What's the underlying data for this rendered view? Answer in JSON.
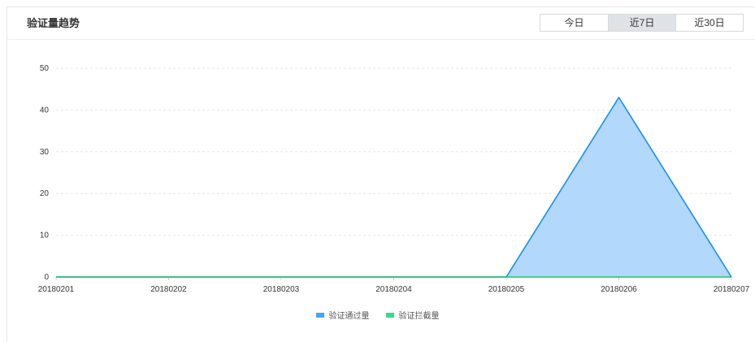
{
  "header": {
    "title": "验证量趋势",
    "tabs": [
      {
        "label": "今日",
        "active": false
      },
      {
        "label": "近7日",
        "active": true
      },
      {
        "label": "近30日",
        "active": false
      }
    ]
  },
  "colors": {
    "pass_line": "#1a8ff0",
    "pass_fill": "#b2d8fb",
    "intercept_line": "#1ec26b",
    "grid": "#e6e6e6",
    "tab_active_bg": "#dfe3e8"
  },
  "chart_data": {
    "type": "area",
    "title": "",
    "xlabel": "",
    "ylabel": "",
    "x": [
      "20180201",
      "20180202",
      "20180203",
      "20180204",
      "20180205",
      "20180206",
      "20180207"
    ],
    "ylim": [
      0,
      50
    ],
    "yticks": [
      "0",
      "10",
      "20",
      "30",
      "40",
      "50"
    ],
    "grid": "dashed horizontal",
    "legend_position": "bottom",
    "series": [
      {
        "name": "验证通过量",
        "values": [
          0,
          0,
          0,
          0,
          0,
          43,
          0
        ],
        "legend_color": "#4aa3f0"
      },
      {
        "name": "验证拦截量",
        "values": [
          0,
          0,
          0,
          0,
          0,
          0,
          0
        ],
        "legend_color": "#3dd68c"
      }
    ]
  }
}
